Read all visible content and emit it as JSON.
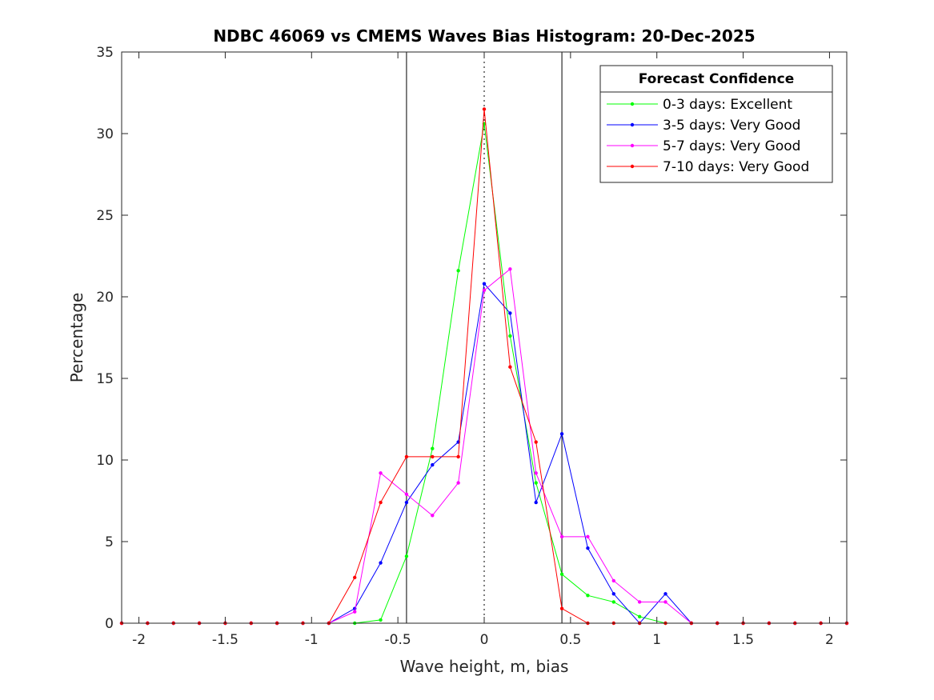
{
  "chart_data": {
    "type": "line",
    "title": "NDBC 46069 vs CMEMS Waves Bias Histogram: 20-Dec-2025",
    "xlabel": "Wave height, m, bias",
    "ylabel": "Percentage",
    "xlim": [
      -2.1,
      2.1
    ],
    "ylim": [
      0,
      35
    ],
    "xticks": [
      -2,
      -1.5,
      -1,
      -0.5,
      0,
      0.5,
      1,
      1.5,
      2
    ],
    "xtick_labels": [
      "-2",
      "-1.5",
      "-1",
      "-0.5",
      "0",
      "0.5",
      "1",
      "1.5",
      "2"
    ],
    "yticks": [
      0,
      5,
      10,
      15,
      20,
      25,
      30,
      35
    ],
    "ytick_labels": [
      "0",
      "5",
      "10",
      "15",
      "20",
      "25",
      "30",
      "35"
    ],
    "vertical_lines": [
      {
        "x": -0.45,
        "style": "solid"
      },
      {
        "x": 0,
        "style": "dotted"
      },
      {
        "x": 0.45,
        "style": "solid"
      }
    ],
    "legend": {
      "title": "Forecast Confidence",
      "position": "top-right"
    },
    "x": [
      -2.1,
      -1.95,
      -1.8,
      -1.65,
      -1.5,
      -1.35,
      -1.2,
      -1.05,
      -0.9,
      -0.75,
      -0.6,
      -0.45,
      -0.3,
      -0.15,
      0,
      0.15,
      0.3,
      0.45,
      0.6,
      0.75,
      0.9,
      1.05,
      1.2,
      1.35,
      1.5,
      1.65,
      1.8,
      1.95,
      2.1
    ],
    "series": [
      {
        "name": "0-3 days: Excellent",
        "color": "#00ff00",
        "values": [
          0,
          0,
          0,
          0,
          0,
          0,
          0,
          0,
          0,
          0,
          0.2,
          4.1,
          10.7,
          21.6,
          30.6,
          17.6,
          8.6,
          3.0,
          1.7,
          1.3,
          0.4,
          0,
          0,
          0,
          0,
          0,
          0,
          0,
          0
        ]
      },
      {
        "name": "3-5 days: Very Good",
        "color": "#0000ff",
        "values": [
          0,
          0,
          0,
          0,
          0,
          0,
          0,
          0,
          0,
          0.9,
          3.7,
          7.4,
          9.7,
          11.1,
          20.8,
          19.0,
          7.4,
          11.6,
          4.6,
          1.8,
          0,
          1.8,
          0,
          0,
          0,
          0,
          0,
          0,
          0
        ]
      },
      {
        "name": "5-7 days: Very Good",
        "color": "#ff00ff",
        "values": [
          0,
          0,
          0,
          0,
          0,
          0,
          0,
          0,
          0,
          0.7,
          9.2,
          7.9,
          6.6,
          8.6,
          20.4,
          21.7,
          9.2,
          5.3,
          5.3,
          2.6,
          1.3,
          1.3,
          0,
          0,
          0,
          0,
          0,
          0,
          0
        ]
      },
      {
        "name": "7-10 days: Very Good",
        "color": "#ff0000",
        "values": [
          0,
          0,
          0,
          0,
          0,
          0,
          0,
          0,
          0,
          2.8,
          7.4,
          10.2,
          10.2,
          10.2,
          31.5,
          15.7,
          11.1,
          0.9,
          0,
          0,
          0,
          0,
          0,
          0,
          0,
          0,
          0,
          0,
          0
        ]
      }
    ]
  }
}
